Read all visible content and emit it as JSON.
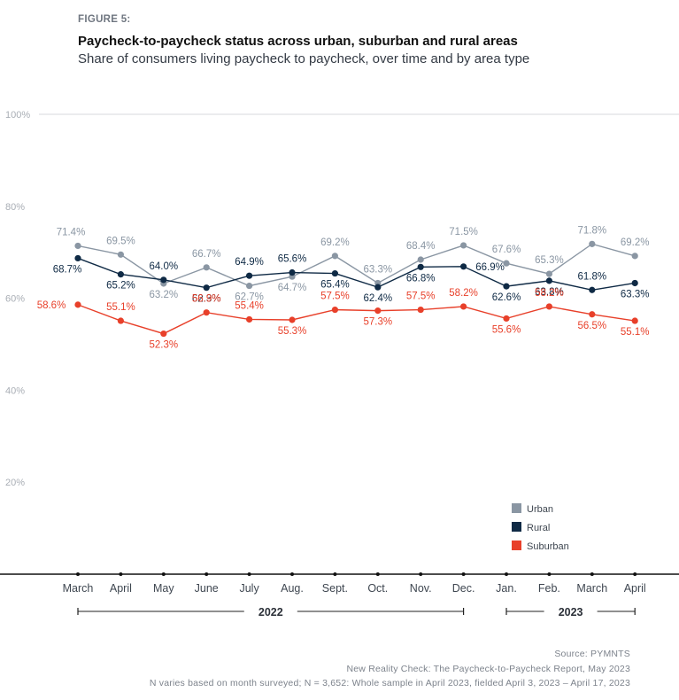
{
  "figure_label": "FIGURE 5:",
  "title": "Paycheck-to-paycheck status across urban, suburban and rural areas",
  "subtitle": "Share of consumers living paycheck to paycheck, over time and by area type",
  "source": {
    "line1": "Source: PYMNTS",
    "line2": "New Reality Check: The Paycheck-to-Paycheck Report, May 2023",
    "line3": "N varies based on month surveyed; N = 3,652: Whole sample in April 2023, fielded April 3, 2023 – April 17, 2023"
  },
  "chart_data": {
    "type": "line",
    "title": "Paycheck-to-paycheck status across urban, suburban and rural areas",
    "subtitle": "Share of consumers living paycheck to paycheck, over time and by area type",
    "xlabel": "",
    "ylabel": "",
    "categories": [
      "March",
      "April",
      "May",
      "June",
      "July",
      "Aug.",
      "Sept.",
      "Oct.",
      "Nov.",
      "Dec.",
      "Jan.",
      "Feb.",
      "March",
      "April"
    ],
    "year_groups": [
      {
        "label": "2022",
        "from": 0,
        "to": 9
      },
      {
        "label": "2023",
        "from": 10,
        "to": 13
      }
    ],
    "ylim": [
      0,
      100
    ],
    "yticks": [
      20,
      40,
      60,
      80,
      100
    ],
    "ytick_labels": [
      "20%",
      "40%",
      "60%",
      "80%",
      "100%"
    ],
    "grid": "top line only",
    "legend_position": "bottom-right",
    "series": [
      {
        "name": "Urban",
        "color": "#8a96a3",
        "values": [
          71.4,
          69.5,
          63.2,
          66.7,
          62.7,
          64.7,
          69.2,
          63.3,
          68.4,
          71.5,
          67.6,
          65.3,
          71.8,
          69.2
        ]
      },
      {
        "name": "Rural",
        "color": "#0f2a45",
        "values": [
          68.7,
          65.2,
          64.0,
          62.3,
          64.9,
          65.6,
          65.4,
          62.4,
          66.8,
          66.9,
          62.6,
          63.8,
          61.8,
          63.3
        ]
      },
      {
        "name": "Suburban",
        "color": "#e8402a",
        "values": [
          58.6,
          55.1,
          52.3,
          56.9,
          55.4,
          55.3,
          57.5,
          57.3,
          57.5,
          58.2,
          55.6,
          58.2,
          56.5,
          55.1
        ]
      }
    ]
  }
}
